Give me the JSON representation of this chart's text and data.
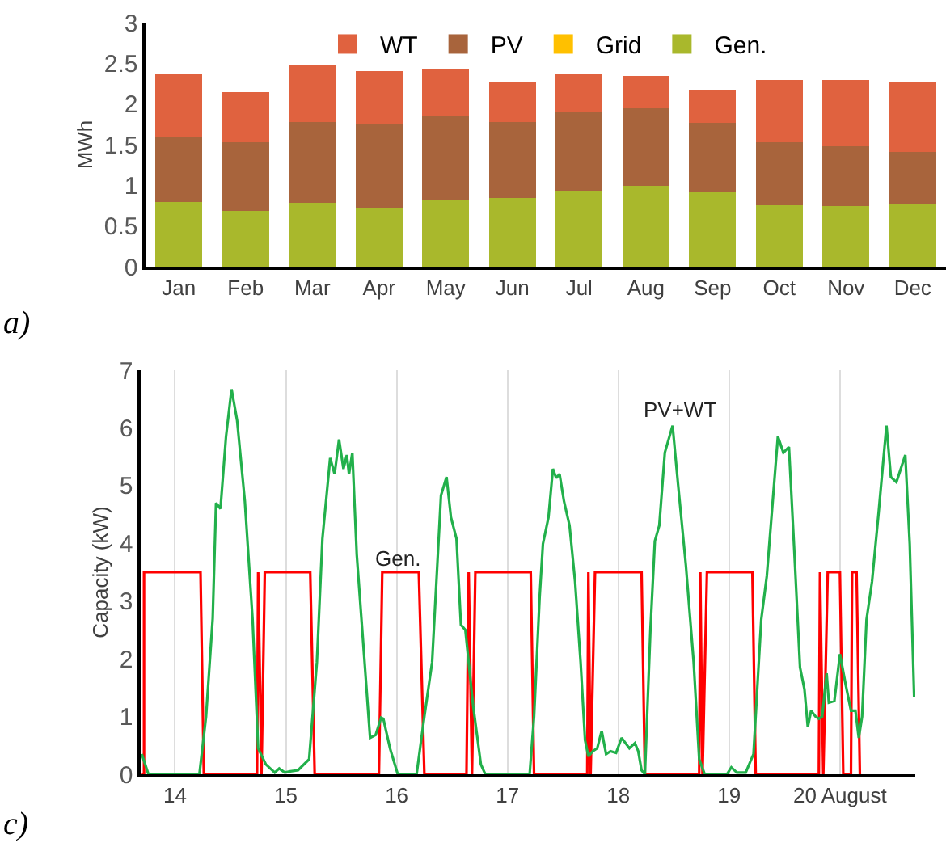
{
  "chart_data": [
    {
      "type": "bar",
      "stacked": true,
      "ylabel": "MWh",
      "legend": "top",
      "annotations": [
        "a)"
      ],
      "categories": [
        "Jan",
        "Feb",
        "Mar",
        "Apr",
        "May",
        "Jun",
        "Jul",
        "Aug",
        "Sep",
        "Oct",
        "Nov",
        "Dec"
      ],
      "ylim": [
        0,
        3
      ],
      "yticks": [
        0,
        0.5,
        1,
        1.5,
        2,
        2.5,
        3
      ],
      "series": [
        {
          "name": "Gen.",
          "color": "#a9b82c",
          "values": [
            0.79,
            0.69,
            0.78,
            0.73,
            0.81,
            0.84,
            0.93,
            0.99,
            0.91,
            0.76,
            0.75,
            0.77
          ]
        },
        {
          "name": "Grid",
          "color": "#ffc000",
          "values": [
            0,
            0,
            0,
            0,
            0,
            0,
            0,
            0,
            0,
            0,
            0,
            0
          ]
        },
        {
          "name": "PV",
          "color": "#a8643c",
          "values": [
            0.8,
            0.84,
            1.0,
            1.03,
            1.04,
            0.94,
            0.97,
            0.96,
            0.86,
            0.77,
            0.73,
            0.64
          ]
        },
        {
          "name": "WT",
          "color": "#e0623f",
          "values": [
            0.77,
            0.62,
            0.69,
            0.64,
            0.58,
            0.49,
            0.46,
            0.39,
            0.41,
            0.76,
            0.81,
            0.86
          ]
        }
      ]
    },
    {
      "type": "line",
      "ylabel": "Capacity (kW)",
      "grid": "x",
      "line_style": "solid",
      "xlim": [
        13.69,
        20.68
      ],
      "xticks": [
        14,
        15,
        16,
        17,
        18,
        19,
        {
          "value": 20,
          "label": "20 August"
        }
      ],
      "ylim": [
        0,
        7
      ],
      "yticks": [
        0,
        1,
        2,
        3,
        4,
        5,
        6,
        7
      ],
      "annotations": [
        "Gen.",
        "PV+WT",
        "c)"
      ],
      "series": [
        {
          "color": "#ff0000",
          "x": [
            13.7,
            13.72,
            13.72,
            14.23,
            14.26,
            14.74,
            14.75,
            14.78,
            14.81,
            15.22,
            15.26,
            15.84,
            15.87,
            16.2,
            16.25,
            16.63,
            16.65,
            16.68,
            16.71,
            17.21,
            17.24,
            17.72,
            17.73,
            17.75,
            17.79,
            18.21,
            18.24,
            18.73,
            18.74,
            18.76,
            18.8,
            19.21,
            19.24,
            19.81,
            19.82,
            19.85,
            19.89,
            20.0,
            20.03,
            20.1,
            20.11,
            20.15,
            20.18
          ],
          "values": [
            0,
            0,
            3.5,
            3.5,
            0,
            0,
            3.5,
            0,
            3.5,
            3.5,
            0,
            0,
            3.5,
            3.5,
            0,
            0,
            3.5,
            0,
            3.5,
            3.5,
            0,
            0,
            3.5,
            0,
            3.5,
            3.5,
            0,
            0,
            3.5,
            0,
            3.5,
            3.5,
            0,
            0,
            3.5,
            0,
            3.5,
            3.5,
            0,
            0,
            3.5,
            3.5,
            0
          ]
        },
        {
          "color": "#22b04b",
          "x": [
            13.7,
            13.76,
            14.22,
            14.28,
            14.34,
            14.37,
            14.41,
            14.46,
            14.51,
            14.56,
            14.63,
            14.7,
            14.75,
            14.82,
            14.9,
            14.94,
            14.99,
            15.04,
            15.11,
            15.21,
            15.28,
            15.33,
            15.4,
            15.44,
            15.48,
            15.52,
            15.55,
            15.57,
            15.6,
            15.64,
            15.7,
            15.76,
            15.81,
            15.86,
            15.88,
            15.94,
            16.01,
            16.18,
            16.25,
            16.32,
            16.4,
            16.45,
            16.49,
            16.54,
            16.58,
            16.62,
            16.69,
            16.76,
            16.8,
            17.2,
            17.24,
            17.29,
            17.32,
            17.37,
            17.41,
            17.44,
            17.47,
            17.51,
            17.56,
            17.61,
            17.66,
            17.7,
            17.73,
            17.77,
            17.81,
            17.85,
            17.89,
            17.93,
            17.98,
            18.03,
            18.1,
            18.15,
            18.18,
            18.21,
            18.24,
            18.29,
            18.33,
            18.37,
            18.42,
            18.49,
            18.54,
            18.61,
            18.68,
            18.73,
            18.78,
            18.98,
            19.02,
            19.07,
            19.15,
            19.22,
            19.29,
            19.34,
            19.39,
            19.44,
            19.49,
            19.54,
            19.59,
            19.64,
            19.68,
            19.71,
            19.74,
            19.78,
            19.81,
            19.84,
            19.88,
            19.9,
            19.95,
            20.0,
            20.05,
            20.1,
            20.14,
            20.17,
            20.2,
            20.24,
            20.29,
            20.35,
            20.42,
            20.46,
            20.51,
            20.59,
            20.63,
            20.67
          ],
          "values": [
            0.35,
            0,
            0,
            1.0,
            2.7,
            4.7,
            4.6,
            5.85,
            6.67,
            6.13,
            4.73,
            2.68,
            0.45,
            0.17,
            0.03,
            0.1,
            0.03,
            0.05,
            0.07,
            0.26,
            1.94,
            4.08,
            5.48,
            5.2,
            5.8,
            5.29,
            5.53,
            5.2,
            5.57,
            3.8,
            2.22,
            0.63,
            0.68,
            0.98,
            0.96,
            0.45,
            0,
            0,
            1.0,
            1.94,
            4.83,
            5.15,
            4.45,
            4.08,
            2.59,
            2.5,
            1.19,
            0.17,
            0,
            0,
            1.0,
            3.06,
            3.99,
            4.45,
            5.29,
            5.13,
            5.2,
            4.73,
            4.31,
            3.34,
            1.94,
            0.59,
            0.31,
            0.4,
            0.45,
            0.75,
            0.35,
            0.4,
            0.37,
            0.63,
            0.45,
            0.54,
            0.4,
            0.07,
            0,
            2.5,
            4.04,
            4.31,
            5.57,
            6.04,
            5.01,
            3.62,
            1.94,
            0.26,
            0,
            0,
            0.12,
            0.03,
            0.03,
            0.35,
            2.68,
            3.43,
            4.64,
            5.85,
            5.57,
            5.67,
            3.8,
            1.85,
            1.47,
            0.82,
            1.1,
            1.0,
            0.96,
            1.0,
            1.75,
            1.24,
            1.27,
            2.08,
            1.57,
            1.1,
            1.1,
            0.63,
            1.0,
            2.68,
            3.34,
            4.55,
            6.04,
            5.15,
            5.06,
            5.53,
            3.99,
            1.33
          ]
        }
      ]
    }
  ]
}
